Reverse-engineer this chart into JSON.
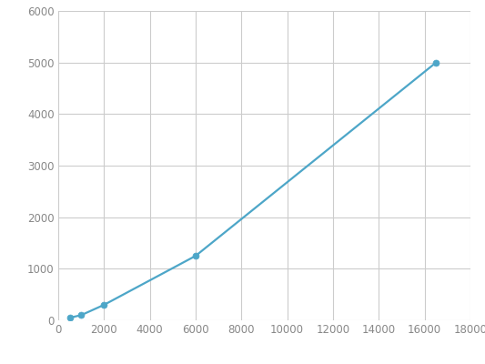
{
  "x": [
    500,
    1000,
    2000,
    6000,
    16500
  ],
  "y": [
    50,
    100,
    300,
    1250,
    5000
  ],
  "line_color": "#4da6c8",
  "marker_color": "#4da6c8",
  "marker_size": 5,
  "line_width": 1.6,
  "xlim": [
    0,
    18000
  ],
  "ylim": [
    0,
    6000
  ],
  "xticks": [
    0,
    2000,
    4000,
    6000,
    8000,
    10000,
    12000,
    14000,
    16000,
    18000
  ],
  "yticks": [
    0,
    1000,
    2000,
    3000,
    4000,
    5000,
    6000
  ],
  "grid_color": "#cccccc",
  "background_color": "#ffffff",
  "spine_color": "#cccccc",
  "tick_label_fontsize": 8.5,
  "tick_color": "#888888"
}
